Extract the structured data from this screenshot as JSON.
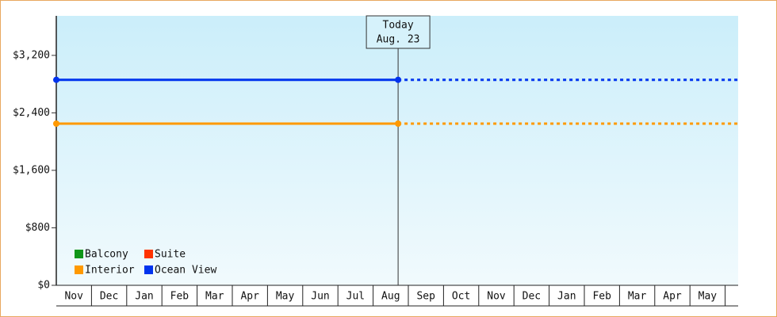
{
  "chart_data": {
    "type": "line",
    "categories": [
      "Nov",
      "Dec",
      "Jan",
      "Feb",
      "Mar",
      "Apr",
      "May",
      "Jun",
      "Jul",
      "Aug",
      "Sep",
      "Oct",
      "Nov",
      "Dec",
      "Jan",
      "Feb",
      "Mar",
      "Apr",
      "May"
    ],
    "x": [
      "Nov",
      "Aug. 23"
    ],
    "today_label": "Today",
    "series": [
      {
        "name": "Balcony",
        "color": "#109618",
        "values": [
          null,
          null
        ]
      },
      {
        "name": "Suite",
        "color": "#ff3300",
        "values": [
          null,
          null
        ]
      },
      {
        "name": "Interior",
        "color": "#ff9900",
        "values": [
          2250,
          2250
        ]
      },
      {
        "name": "Ocean View",
        "color": "#0033ee",
        "values": [
          2860,
          2860
        ]
      }
    ],
    "ylim": [
      0,
      3750
    ],
    "yticks": [
      {
        "value": 0,
        "label": "$0"
      },
      {
        "value": 800,
        "label": "$800"
      },
      {
        "value": 1600,
        "label": "$1,600"
      },
      {
        "value": 2400,
        "label": "$2,400"
      },
      {
        "value": 3200,
        "label": "$3,200"
      }
    ],
    "projection": true,
    "legend": "bottom-left"
  }
}
